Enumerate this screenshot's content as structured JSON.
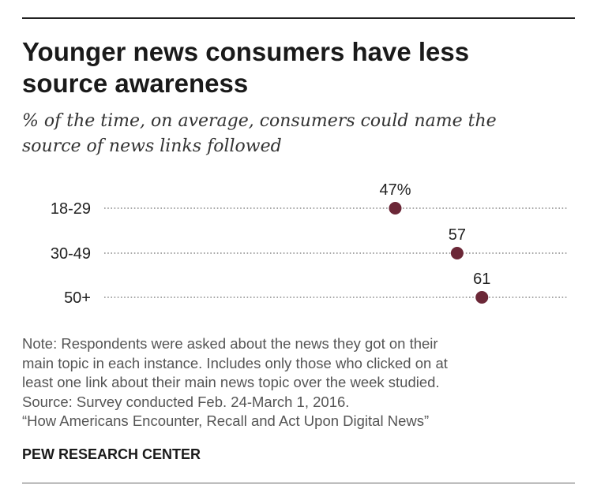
{
  "chart_data": {
    "type": "scatter",
    "title": "Younger news consumers have less source awareness",
    "subtitle": "% of the time, on average, consumers could name the source of news links followed",
    "categories": [
      "18-29",
      "30-49",
      "50+"
    ],
    "values": [
      47,
      57,
      61
    ],
    "value_labels": [
      "47%",
      "57",
      "61"
    ],
    "xlim": [
      0,
      75
    ],
    "point_color": "#6b2737",
    "grid": false
  },
  "title_lines": [
    "Younger news consumers have less",
    "source awareness"
  ],
  "subtitle_lines": [
    "% of the time, on average, consumers could name the",
    "source of news links followed"
  ],
  "note_lines": [
    "Note: Respondents were asked about the news they got on their",
    "main topic in each instance. Includes only those who clicked on at",
    "least one link about their main news topic over the week studied.",
    "Source: Survey conducted Feb. 24-March 1, 2016.",
    "“How Americans Encounter, Recall and Act Upon Digital News”"
  ],
  "brand": "PEW RESEARCH CENTER"
}
